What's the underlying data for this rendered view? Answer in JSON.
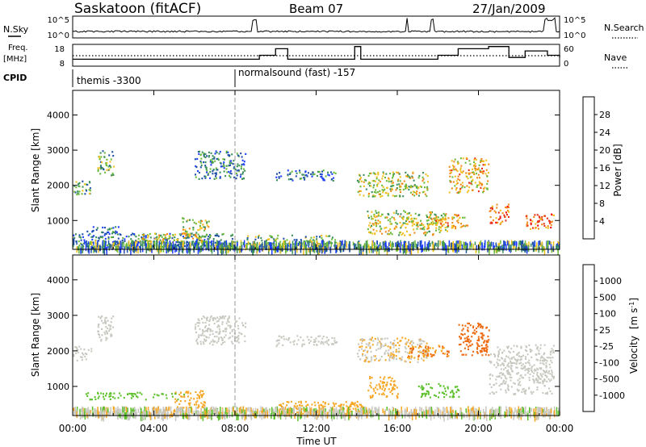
{
  "header": {
    "title": "Saskatoon (fitACF)",
    "beam": "Beam 07",
    "date": "27/Jan/2009"
  },
  "noise_panel": {
    "left_label": "N.Sky",
    "right_label": "N.Search",
    "left_ticks": [
      "10^5",
      "10^0"
    ],
    "right_ticks": [
      "10^5",
      "10^0"
    ]
  },
  "freq_panel": {
    "left_label_top": "Freq.",
    "left_label_bottom": "[MHz]",
    "right_label": "Nave",
    "left_ticks": [
      "18",
      "8"
    ],
    "right_ticks": [
      "60",
      "0"
    ]
  },
  "cpid": {
    "label": "CPID",
    "segments": [
      {
        "name": "themis -3300"
      },
      {
        "name": "normalsound (fast) -157"
      }
    ],
    "change_time": "08:00"
  },
  "power_panel": {
    "ylabel": "Slant Range [km]",
    "yticks": [
      "1000",
      "2000",
      "3000",
      "4000"
    ],
    "colorbar_label": "Power [dB]",
    "colorbar_ticks": [
      "4",
      "8",
      "12",
      "16",
      "20",
      "24",
      "28"
    ],
    "colors": [
      "#1f3fff",
      "#1f4fa8",
      "#3b8f5a",
      "#6cbb3c",
      "#f0c020",
      "#f08a18",
      "#e83018",
      "#ff0000"
    ]
  },
  "velocity_panel": {
    "ylabel": "Slant Range [km]",
    "yticks": [
      "1000",
      "2000",
      "3000",
      "4000"
    ],
    "colorbar_label": "Velocity",
    "colorbar_units": "[m s",
    "colorbar_units_sup": "-1",
    "colorbar_units_close": "]",
    "colorbar_ticks": [
      "1000",
      "500",
      "100",
      "25",
      "-25",
      "-100",
      "-500",
      "-1000"
    ],
    "colors": [
      "#2040c0",
      "#3a7d40",
      "#5cc02a",
      "#c8c8c0",
      "#c8c8c0",
      "#f5a623",
      "#ee6a10",
      "#e02010",
      "#ff0000"
    ]
  },
  "x_axis": {
    "ticks": [
      "00:00",
      "04:00",
      "08:00",
      "12:00",
      "16:00",
      "20:00",
      "00:00"
    ],
    "label": "Time UT"
  },
  "chart_data": {
    "type": "heatmap",
    "title": "Saskatoon (fitACF)",
    "subtitle": "Beam 07",
    "date": "27/Jan/2009",
    "x_axis": {
      "label": "Time UT",
      "range_hours": [
        0,
        24
      ],
      "ticks": [
        "00:00",
        "04:00",
        "08:00",
        "12:00",
        "16:00",
        "20:00",
        "00:00"
      ]
    },
    "y_axis": {
      "label": "Slant Range [km]",
      "range_km": [
        180,
        4700
      ],
      "ticks": [
        1000,
        2000,
        3000,
        4000
      ]
    },
    "cpid_changes": [
      {
        "start_hour": 0,
        "name": "themis -3300"
      },
      {
        "start_hour": 8,
        "name": "normalsound (fast) -157"
      }
    ],
    "frequency_mhz": [
      {
        "t": 0,
        "f": 11.2
      },
      {
        "t": 9.2,
        "f": 13
      },
      {
        "t": 10,
        "f": 16
      },
      {
        "t": 10.6,
        "f": 11.2
      },
      {
        "t": 13.9,
        "f": 17
      },
      {
        "t": 14.2,
        "f": 11.2
      },
      {
        "t": 18,
        "f": 13
      },
      {
        "t": 19,
        "f": 16
      },
      {
        "t": 20.5,
        "f": 17
      },
      {
        "t": 21.5,
        "f": 12
      },
      {
        "t": 22.3,
        "f": 15
      },
      {
        "t": 23.4,
        "f": 13
      },
      {
        "t": 24,
        "f": 12
      }
    ],
    "nave_reference": 30,
    "panels": [
      {
        "name": "Power",
        "units": "dB",
        "colorbar_ticks": [
          4,
          8,
          12,
          16,
          20,
          24,
          28
        ],
        "regions": [
          {
            "t0": 0.0,
            "t1": 0.9,
            "r0": 1750,
            "r1": 2150,
            "level": 3
          },
          {
            "t0": 1.2,
            "t1": 2.0,
            "r0": 2300,
            "r1": 3000,
            "level": 3
          },
          {
            "t0": 0.6,
            "t1": 2.3,
            "r0": 650,
            "r1": 850,
            "level": 2
          },
          {
            "t0": 0.0,
            "t1": 8.0,
            "r0": 250,
            "r1": 650,
            "level": 2
          },
          {
            "t0": 3.2,
            "t1": 6.5,
            "r0": 380,
            "r1": 650,
            "level": 4
          },
          {
            "t0": 5.3,
            "t1": 6.7,
            "r0": 550,
            "r1": 1100,
            "level": 4
          },
          {
            "t0": 6.0,
            "t1": 8.5,
            "r0": 2200,
            "r1": 3000,
            "level": 2
          },
          {
            "t0": 10.0,
            "t1": 13.0,
            "r0": 2150,
            "r1": 2450,
            "level": 2
          },
          {
            "t0": 8.5,
            "t1": 13.0,
            "r0": 250,
            "r1": 600,
            "level": 3
          },
          {
            "t0": 14.0,
            "t1": 17.5,
            "r0": 1700,
            "r1": 2400,
            "level": 4
          },
          {
            "t0": 14.5,
            "t1": 18.5,
            "r0": 600,
            "r1": 1300,
            "level": 4
          },
          {
            "t0": 17.5,
            "t1": 19.5,
            "r0": 800,
            "r1": 1200,
            "level": 5
          },
          {
            "t0": 18.5,
            "t1": 20.5,
            "r0": 1800,
            "r1": 2800,
            "level": 5
          },
          {
            "t0": 20.5,
            "t1": 21.5,
            "r0": 900,
            "r1": 1500,
            "level": 6
          },
          {
            "t0": 22.3,
            "t1": 23.7,
            "r0": 750,
            "r1": 1200,
            "level": 6
          }
        ]
      },
      {
        "name": "Velocity",
        "units": "m s-1",
        "colorbar_ticks": [
          1000,
          500,
          100,
          25,
          -25,
          -100,
          -500,
          -1000
        ],
        "regions": [
          {
            "t0": 0.0,
            "t1": 0.9,
            "r0": 1750,
            "r1": 2150,
            "velocity": 0
          },
          {
            "t0": 1.2,
            "t1": 2.0,
            "r0": 2300,
            "r1": 3000,
            "velocity": 0
          },
          {
            "t0": 0.6,
            "t1": 5.5,
            "r0": 650,
            "r1": 850,
            "velocity": 150
          },
          {
            "t0": 5.0,
            "t1": 6.5,
            "r0": 400,
            "r1": 900,
            "velocity": -150
          },
          {
            "t0": 6.0,
            "t1": 8.5,
            "r0": 2200,
            "r1": 3000,
            "velocity": 0
          },
          {
            "t0": 10.0,
            "t1": 13.0,
            "r0": 2150,
            "r1": 2450,
            "velocity": 0
          },
          {
            "t0": 10.0,
            "t1": 14.5,
            "r0": 250,
            "r1": 600,
            "velocity": -120
          },
          {
            "t0": 14.0,
            "t1": 17.5,
            "r0": 1700,
            "r1": 2400,
            "velocity": -50
          },
          {
            "t0": 16.5,
            "t1": 18.5,
            "r0": 1850,
            "r1": 2200,
            "velocity": -300
          },
          {
            "t0": 14.5,
            "t1": 16.0,
            "r0": 700,
            "r1": 1300,
            "velocity": -150
          },
          {
            "t0": 17.0,
            "t1": 19.0,
            "r0": 700,
            "r1": 1100,
            "velocity": 150
          },
          {
            "t0": 19.0,
            "t1": 20.5,
            "r0": 1900,
            "r1": 2800,
            "velocity": -400
          },
          {
            "t0": 20.5,
            "t1": 23.7,
            "r0": 800,
            "r1": 2200,
            "velocity": 0
          }
        ]
      }
    ]
  }
}
